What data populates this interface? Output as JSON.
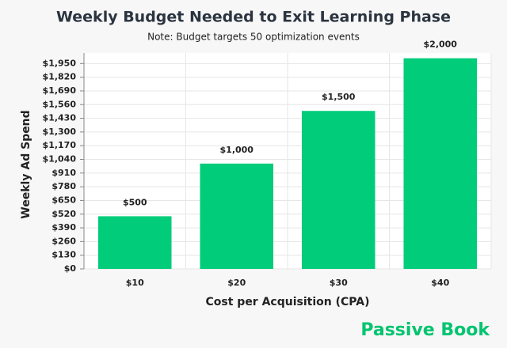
{
  "chart_data": {
    "type": "bar",
    "title": "Weekly Budget Needed to Exit Learning Phase",
    "subtitle": "Note: Budget targets 50 optimization events",
    "x_label": "Cost per Acquisition (CPA)",
    "y_label": "Weekly Ad Spend",
    "watermark": "Passive Book",
    "categories": [
      "$10",
      "$20",
      "$30",
      "$40"
    ],
    "values": [
      500,
      1000,
      1500,
      2000
    ],
    "value_labels": [
      "$500",
      "$1,000",
      "$1,500",
      "$2,000"
    ],
    "color": "#00cc7a",
    "ylim": [
      0,
      2050
    ],
    "yticks": [
      {
        "value": 0,
        "label": "$0"
      },
      {
        "value": 130,
        "label": "$130"
      },
      {
        "value": 260,
        "label": "$260"
      },
      {
        "value": 390,
        "label": "$390"
      },
      {
        "value": 520,
        "label": "$520"
      },
      {
        "value": 650,
        "label": "$650"
      },
      {
        "value": 780,
        "label": "$780"
      },
      {
        "value": 910,
        "label": "$910"
      },
      {
        "value": 1040,
        "label": "$1,040"
      },
      {
        "value": 1170,
        "label": "$1,170"
      },
      {
        "value": 1300,
        "label": "$1,300"
      },
      {
        "value": 1430,
        "label": "$1,430"
      },
      {
        "value": 1560,
        "label": "$1,560"
      },
      {
        "value": 1690,
        "label": "$1,690"
      },
      {
        "value": 1820,
        "label": "$1,820"
      },
      {
        "value": 1950,
        "label": "$1,950"
      }
    ],
    "grid": true
  }
}
